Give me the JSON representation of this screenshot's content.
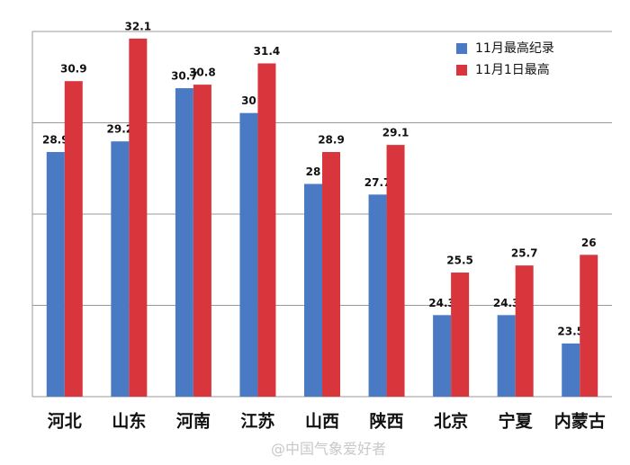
{
  "chart_data": {
    "type": "bar",
    "categories": [
      "河北",
      "山东",
      "河南",
      "江苏",
      "山西",
      "陕西",
      "北京",
      "宁夏",
      "内蒙古"
    ],
    "series": [
      {
        "name": "11月最高纪录",
        "color": "#4a7ac4",
        "values": [
          28.9,
          29.2,
          30.7,
          30,
          28,
          27.7,
          24.3,
          24.3,
          23.5
        ]
      },
      {
        "name": "11月1日最高",
        "color": "#d9353d",
        "values": [
          30.9,
          32.1,
          30.8,
          31.4,
          28.9,
          29.1,
          25.5,
          25.7,
          26
        ]
      }
    ],
    "ylim": [
      22,
      32.3
    ],
    "yticks": [
      22,
      24.575,
      27.15,
      29.725,
      32.3
    ],
    "grid": true,
    "legend": "top-right",
    "watermark": "@中国气象爱好者"
  }
}
